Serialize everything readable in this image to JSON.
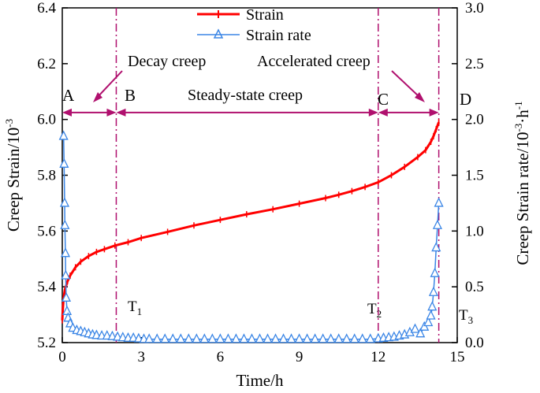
{
  "chart_data": {
    "type": "line",
    "title": "",
    "xlabel": "Time/h",
    "ylabel": "Creep Strain/10",
    "ylabel_exp": "-3",
    "y2label": "Creep Strain rate/10",
    "y2label_exp": "-3",
    "y2label_mid": "·h",
    "y2label_end": "-1",
    "xlim": [
      0,
      15
    ],
    "ylim": [
      5.2,
      6.4
    ],
    "y2lim": [
      0,
      3.0
    ],
    "x_ticks": [
      0,
      3,
      6,
      9,
      12,
      15
    ],
    "x_tick_labels": [
      "0",
      "3",
      "6",
      "9",
      "12",
      "15"
    ],
    "y_ticks": [
      5.2,
      5.4,
      5.6,
      5.8,
      6.0,
      6.2,
      6.4
    ],
    "y_tick_labels": [
      "5.2",
      "5.4",
      "5.6",
      "5.8",
      "6.0",
      "6.2",
      "6.4"
    ],
    "y2_ticks": [
      0,
      0.5,
      1.0,
      1.5,
      2.0,
      2.5,
      3.0
    ],
    "y2_tick_labels": [
      "0.0",
      "0.5",
      "1.0",
      "1.5",
      "2.0",
      "2.5",
      "3.0"
    ],
    "legend": [
      "Strain",
      "Strain rate"
    ],
    "series": [
      {
        "name": "Strain",
        "axis": "left",
        "color": "#ff0000",
        "marker": "none",
        "x": [
          0,
          0.02,
          0.05,
          0.1,
          0.2,
          0.3,
          0.5,
          0.7,
          1.0,
          1.3,
          1.6,
          2.0,
          2.5,
          3.0,
          4.0,
          5.0,
          6.0,
          7.0,
          8.0,
          9.0,
          10.0,
          10.5,
          11.0,
          11.5,
          12.0,
          12.5,
          13.0,
          13.5,
          13.8,
          14.0,
          14.1,
          14.2,
          14.3
        ],
        "y": [
          5.28,
          5.32,
          5.36,
          5.39,
          5.42,
          5.44,
          5.47,
          5.49,
          5.51,
          5.525,
          5.535,
          5.548,
          5.56,
          5.575,
          5.597,
          5.62,
          5.64,
          5.66,
          5.678,
          5.698,
          5.718,
          5.73,
          5.743,
          5.758,
          5.775,
          5.8,
          5.83,
          5.865,
          5.89,
          5.92,
          5.94,
          5.965,
          5.99
        ]
      },
      {
        "name": "Strain rate",
        "axis": "right",
        "color": "#3b86e6",
        "marker": "triangle-open",
        "x": [
          0.05,
          0.07,
          0.09,
          0.1,
          0.12,
          0.13,
          0.15,
          0.18,
          0.22,
          0.3,
          0.4,
          0.55,
          0.7,
          0.85,
          1.0,
          1.15,
          1.3,
          1.5,
          1.7,
          1.9,
          2.1,
          2.3,
          2.5,
          2.7,
          2.9,
          3.1,
          3.3,
          3.6,
          3.9,
          4.2,
          4.5,
          4.8,
          5.1,
          5.4,
          5.7,
          6.0,
          6.3,
          6.6,
          6.9,
          7.2,
          7.5,
          7.8,
          8.1,
          8.4,
          8.7,
          9.0,
          9.3,
          9.6,
          9.9,
          10.2,
          10.5,
          10.8,
          11.1,
          11.4,
          11.7,
          12.0,
          12.2,
          12.4,
          12.6,
          12.8,
          13.0,
          13.2,
          13.4,
          13.6,
          13.75,
          13.9,
          14.0,
          14.05,
          14.1,
          14.15,
          14.2,
          14.25,
          14.3
        ],
        "y": [
          1.85,
          1.6,
          1.25,
          1.05,
          0.8,
          0.6,
          0.4,
          0.28,
          0.22,
          0.17,
          0.13,
          0.11,
          0.1,
          0.09,
          0.08,
          0.07,
          0.065,
          0.06,
          0.06,
          0.055,
          0.05,
          0.045,
          0.04,
          0.04,
          0.035,
          0.03,
          0.03,
          0.03,
          0.03,
          0.03,
          0.03,
          0.03,
          0.03,
          0.03,
          0.03,
          0.03,
          0.03,
          0.03,
          0.03,
          0.03,
          0.03,
          0.03,
          0.03,
          0.03,
          0.03,
          0.03,
          0.03,
          0.03,
          0.03,
          0.03,
          0.03,
          0.03,
          0.03,
          0.03,
          0.03,
          0.035,
          0.04,
          0.045,
          0.05,
          0.06,
          0.07,
          0.09,
          0.12,
          0.08,
          0.14,
          0.18,
          0.24,
          0.32,
          0.45,
          0.62,
          0.85,
          1.05,
          1.25
        ]
      }
    ],
    "vlines": [
      {
        "x": 2.05,
        "color": "#b0106e",
        "label": "T",
        "sub": "1"
      },
      {
        "x": 12.0,
        "color": "#b0106e",
        "label": "T",
        "sub": "2"
      },
      {
        "x": 14.3,
        "color": "#b0106e",
        "label": "T",
        "sub": "3"
      }
    ],
    "stage_arrow_y": 6.025,
    "stages": [
      {
        "from": 0,
        "to": 2.05
      },
      {
        "from": 2.05,
        "to": 12.0
      },
      {
        "from": 12.0,
        "to": 14.3
      }
    ],
    "point_labels": [
      "A",
      "B",
      "C",
      "D"
    ],
    "annotations": [
      "Decay creep",
      "Steady-state creep",
      "Accelerated creep"
    ]
  }
}
